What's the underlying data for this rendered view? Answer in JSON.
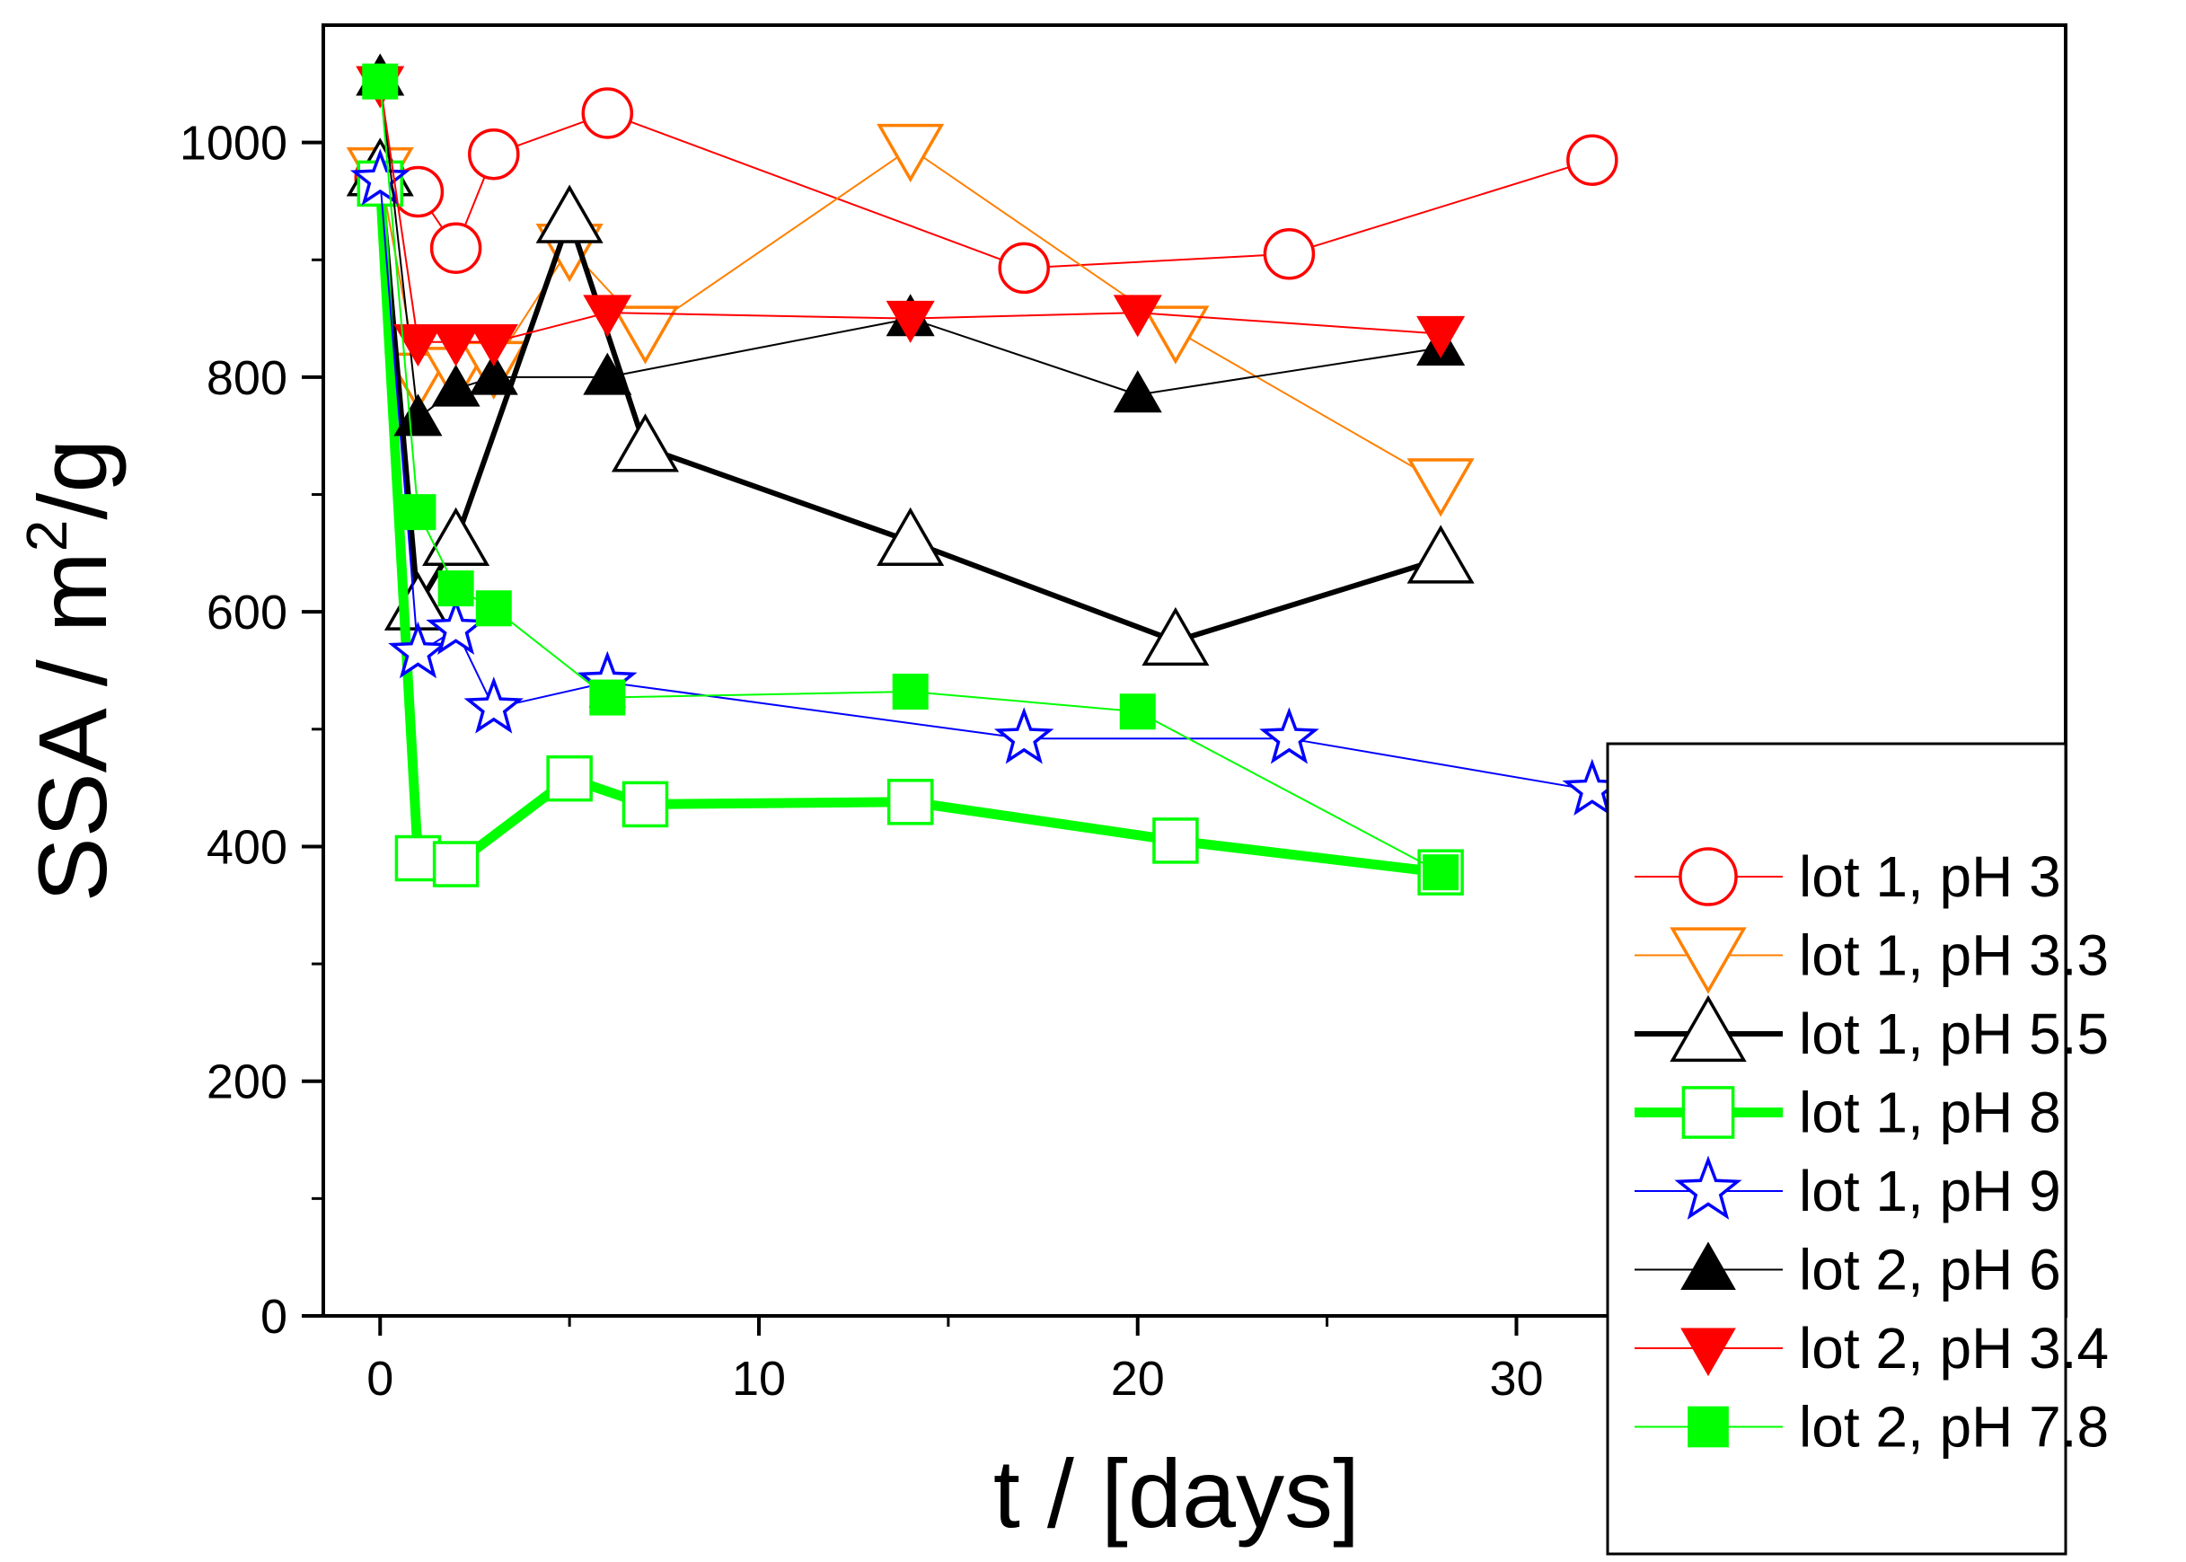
{
  "chart_data": {
    "type": "line",
    "xlabel": "t / [days]",
    "ylabel_main": "SSA / m",
    "ylabel_sup": "2",
    "ylabel_tail": "/g",
    "xlim": [
      -1.5,
      44.5
    ],
    "ylim": [
      0,
      1100
    ],
    "xticks": [
      0,
      10,
      20,
      30
    ],
    "yticks": [
      0,
      200,
      400,
      600,
      800,
      1000
    ],
    "legend_position": "bottom-right",
    "series": [
      {
        "name": "lot 1, pH 3",
        "color": "#ff0000",
        "marker": "circle",
        "filled": false,
        "line": "thin",
        "x": [
          0,
          1,
          2,
          3,
          6,
          17,
          24,
          32
        ],
        "y": [
          970,
          958,
          910,
          990,
          1025,
          893,
          905,
          985
        ]
      },
      {
        "name": "lot 1, pH 3.3",
        "color": "#ff8000",
        "marker": "triangle-down",
        "filled": false,
        "line": "thin",
        "x": [
          0,
          1,
          2,
          3,
          5,
          7,
          14,
          21,
          28
        ],
        "y": [
          975,
          800,
          805,
          810,
          910,
          840,
          995,
          840,
          710
        ]
      },
      {
        "name": "lot 1, pH 5.5",
        "color": "#000000",
        "marker": "triangle-up",
        "filled": false,
        "line": "thick",
        "x": [
          0,
          1,
          2,
          5,
          7,
          14,
          21,
          28
        ],
        "y": [
          975,
          605,
          660,
          935,
          740,
          660,
          575,
          645
        ]
      },
      {
        "name": "lot 1, pH 8",
        "color": "#00ff00",
        "marker": "square",
        "filled": false,
        "line": "heavy",
        "x": [
          0,
          1,
          2,
          5,
          7,
          14,
          21,
          28
        ],
        "y": [
          965,
          390,
          385,
          458,
          436,
          438,
          405,
          378
        ]
      },
      {
        "name": "lot 1, pH 9",
        "color": "#0000ff",
        "marker": "star",
        "filled": false,
        "line": "thin",
        "x": [
          0,
          1,
          2,
          3,
          6,
          17,
          24,
          32
        ],
        "y": [
          968,
          565,
          585,
          518,
          540,
          492,
          492,
          448
        ]
      },
      {
        "name": "lot 2, pH 6",
        "color": "#000000",
        "marker": "triangle-up",
        "filled": true,
        "line": "thin",
        "x": [
          0,
          1,
          2,
          3,
          6,
          14,
          20,
          28
        ],
        "y": [
          1055,
          765,
          790,
          800,
          800,
          850,
          785,
          825
        ]
      },
      {
        "name": "lot 2, pH 3.4",
        "color": "#ff0000",
        "marker": "triangle-down",
        "filled": true,
        "line": "thin",
        "x": [
          0,
          1,
          2,
          3,
          6,
          14,
          20,
          28
        ],
        "y": [
          1050,
          830,
          830,
          830,
          855,
          850,
          855,
          837
        ]
      },
      {
        "name": "lot 2, pH 7.8",
        "color": "#00ff00",
        "marker": "square",
        "filled": true,
        "line": "thin",
        "x": [
          0,
          1,
          2,
          3,
          6,
          14,
          20,
          28
        ],
        "y": [
          1052,
          685,
          620,
          603,
          527,
          532,
          515,
          378
        ]
      }
    ]
  }
}
